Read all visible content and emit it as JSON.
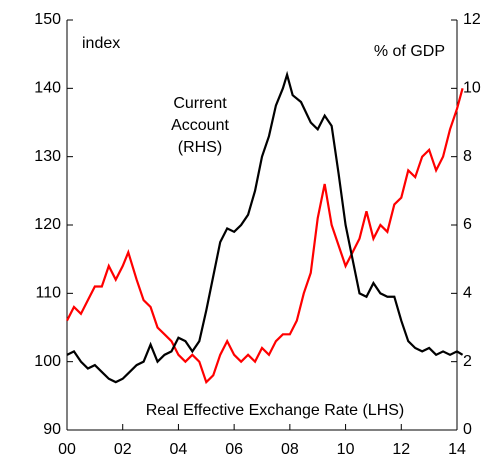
{
  "chart_data": {
    "type": "line",
    "annotations": {
      "left_unit": "index",
      "right_unit": "% of GDP"
    },
    "xlim": [
      2000,
      2014
    ],
    "xticks": [
      {
        "value": 2000,
        "label": "00"
      },
      {
        "value": 2002,
        "label": "02"
      },
      {
        "value": 2004,
        "label": "04"
      },
      {
        "value": 2006,
        "label": "06"
      },
      {
        "value": 2008,
        "label": "08"
      },
      {
        "value": 2010,
        "label": "10"
      },
      {
        "value": 2012,
        "label": "12"
      },
      {
        "value": 2014,
        "label": "14"
      }
    ],
    "ylim": [
      90,
      150
    ],
    "yticks": [
      90,
      100,
      110,
      120,
      130,
      140,
      150
    ],
    "y2lim": [
      0,
      12
    ],
    "y2ticks": [
      0,
      2,
      4,
      6,
      8,
      10,
      12
    ],
    "series": [
      {
        "name": "Real Effective Exchange Rate (LHS)",
        "color": "#ff0000",
        "axis": "y",
        "x": [
          2000.0,
          2000.25,
          2000.5,
          2000.75,
          2001.0,
          2001.25,
          2001.5,
          2001.75,
          2002.0,
          2002.2,
          2002.5,
          2002.75,
          2003.0,
          2003.25,
          2003.5,
          2003.75,
          2004.0,
          2004.25,
          2004.5,
          2004.75,
          2005.0,
          2005.25,
          2005.5,
          2005.75,
          2006.0,
          2006.25,
          2006.5,
          2006.75,
          2007.0,
          2007.25,
          2007.5,
          2007.75,
          2008.0,
          2008.25,
          2008.5,
          2008.75,
          2009.0,
          2009.25,
          2009.5,
          2009.75,
          2010.0,
          2010.25,
          2010.5,
          2010.75,
          2011.0,
          2011.25,
          2011.5,
          2011.75,
          2012.0,
          2012.25,
          2012.5,
          2012.75,
          2013.0,
          2013.25,
          2013.5,
          2013.75,
          2014.0,
          2014.2
        ],
        "values": [
          106,
          108,
          107,
          109,
          111,
          111,
          114,
          112,
          114,
          116,
          112,
          109,
          108,
          105,
          104,
          103,
          101,
          100,
          101,
          100,
          97,
          98,
          101,
          103,
          101,
          100,
          101,
          100,
          102,
          101,
          103,
          104,
          104,
          106,
          110,
          113,
          121,
          126,
          120,
          117,
          114,
          116,
          118,
          122,
          118,
          120,
          119,
          123,
          124,
          128,
          127,
          130,
          131,
          128,
          130,
          134,
          137,
          140
        ]
      },
      {
        "label_lines": [
          "Current",
          "Account",
          "(RHS)"
        ],
        "color": "#000000",
        "axis": "y2",
        "x": [
          2000.0,
          2000.25,
          2000.5,
          2000.75,
          2001.0,
          2001.25,
          2001.5,
          2001.75,
          2002.0,
          2002.25,
          2002.5,
          2002.75,
          2003.0,
          2003.25,
          2003.5,
          2003.75,
          2004.0,
          2004.25,
          2004.5,
          2004.75,
          2005.0,
          2005.25,
          2005.5,
          2005.75,
          2006.0,
          2006.25,
          2006.5,
          2006.75,
          2007.0,
          2007.25,
          2007.5,
          2007.75,
          2007.9,
          2008.1,
          2008.4,
          2008.75,
          2009.0,
          2009.25,
          2009.5,
          2009.75,
          2010.0,
          2010.25,
          2010.5,
          2010.75,
          2011.0,
          2011.25,
          2011.5,
          2011.75,
          2012.0,
          2012.25,
          2012.5,
          2012.75,
          2013.0,
          2013.25,
          2013.5,
          2013.75,
          2014.0,
          2014.2
        ],
        "values": [
          2.2,
          2.3,
          2.0,
          1.8,
          1.9,
          1.7,
          1.5,
          1.4,
          1.5,
          1.7,
          1.9,
          2.0,
          2.5,
          2.0,
          2.2,
          2.3,
          2.7,
          2.6,
          2.3,
          2.6,
          3.5,
          4.5,
          5.5,
          5.9,
          5.8,
          6.0,
          6.3,
          7.0,
          8.0,
          8.6,
          9.5,
          10.0,
          10.4,
          9.8,
          9.6,
          9.0,
          8.8,
          9.2,
          8.9,
          7.5,
          6.0,
          5.0,
          4.0,
          3.9,
          4.3,
          4.0,
          3.9,
          3.9,
          3.2,
          2.6,
          2.4,
          2.3,
          2.4,
          2.2,
          2.3,
          2.2,
          2.3,
          2.2
        ]
      }
    ]
  }
}
